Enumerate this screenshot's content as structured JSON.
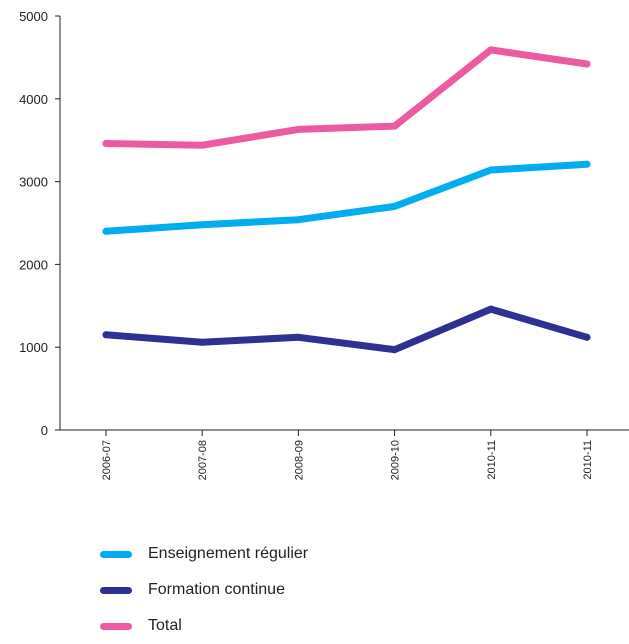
{
  "chart_data": {
    "type": "line",
    "title": "",
    "xlabel": "",
    "ylabel": "",
    "categories": [
      "2006-07",
      "2007-08",
      "2008-09",
      "2009-10",
      "2010-11",
      "2010-11"
    ],
    "ylim": [
      0,
      5000
    ],
    "yticks": [
      "0",
      "1000",
      "2000",
      "3000",
      "4000",
      "5000"
    ],
    "grid": false,
    "legend_position": "bottom",
    "series": [
      {
        "name": "Enseignement régulier",
        "color": "#00AEEF",
        "values": [
          2400,
          2480,
          2540,
          2700,
          3140,
          3210
        ]
      },
      {
        "name": "Formation continue",
        "color": "#2E3192",
        "values": [
          1150,
          1060,
          1120,
          970,
          1460,
          1120
        ]
      },
      {
        "name": "Total",
        "color": "#EC5AA2",
        "values": [
          3460,
          3440,
          3630,
          3670,
          4590,
          4420
        ]
      }
    ]
  }
}
